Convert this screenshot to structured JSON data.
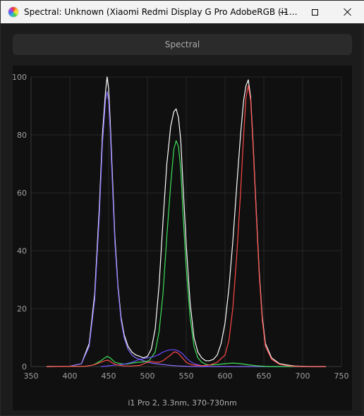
{
  "window": {
    "title": "Spectral: Unknown (Xiaomi Redmi Display G Pro AdobeRGB (i1…"
  },
  "toolbar": {
    "spectral_label": "Spectral"
  },
  "caption": "i1 Pro 2, 3.3nm, 370-730nm",
  "chart_data": {
    "type": "line",
    "title": "",
    "xlabel": "i1 Pro 2, 3.3nm, 370-730nm",
    "ylabel": "",
    "xlim": [
      350,
      750
    ],
    "ylim": [
      0,
      100
    ],
    "xticks": [
      350,
      400,
      450,
      500,
      550,
      600,
      650,
      700,
      750
    ],
    "yticks": [
      0,
      20,
      40,
      60,
      80,
      100
    ],
    "grid": true,
    "background": "#101010",
    "series": [
      {
        "color": "#ffffff",
        "x": [
          370,
          400,
          415,
          425,
          432,
          438,
          442,
          446,
          448,
          450,
          452,
          455,
          458,
          462,
          466,
          470,
          475,
          480,
          485,
          490,
          495,
          500,
          505,
          510,
          515,
          520,
          525,
          530,
          534,
          537,
          540,
          543,
          546,
          550,
          555,
          560,
          565,
          570,
          575,
          580,
          585,
          590,
          595,
          600,
          605,
          610,
          615,
          620,
          624,
          627,
          630,
          633,
          636,
          640,
          644,
          648,
          652,
          660,
          670,
          680,
          690,
          700,
          710,
          720,
          730
        ],
        "y": [
          0,
          0.1,
          1,
          8,
          25,
          55,
          80,
          95,
          100,
          96,
          85,
          65,
          45,
          28,
          17,
          11,
          7,
          5,
          4,
          3.5,
          3,
          3.5,
          6,
          13,
          28,
          50,
          70,
          83,
          88,
          89,
          86,
          78,
          62,
          42,
          22,
          10,
          5,
          3,
          2,
          2,
          2.5,
          4,
          8,
          15,
          27,
          43,
          62,
          80,
          92,
          97,
          99,
          93,
          78,
          55,
          33,
          17,
          8,
          3,
          1,
          0.5,
          0.2,
          0.1,
          0,
          0,
          0
        ]
      },
      {
        "color": "#8a6cff",
        "x": [
          370,
          400,
          415,
          425,
          432,
          438,
          442,
          446,
          448,
          450,
          452,
          455,
          458,
          462,
          466,
          470,
          475,
          480,
          485,
          490,
          495,
          500,
          505,
          510,
          520,
          530,
          540,
          550,
          560,
          600,
          650,
          730
        ],
        "y": [
          0,
          0.1,
          1,
          7,
          23,
          52,
          77,
          92,
          95,
          92,
          82,
          62,
          43,
          27,
          16,
          10,
          6,
          4,
          3,
          2.5,
          2,
          1.6,
          1.2,
          1,
          0.7,
          0.4,
          0.2,
          0.1,
          0,
          0,
          0,
          0
        ]
      },
      {
        "color": "#3ee05a",
        "x": [
          370,
          420,
          430,
          440,
          445,
          448,
          452,
          458,
          465,
          472,
          480,
          488,
          495,
          502,
          510,
          515,
          520,
          525,
          530,
          534,
          537,
          540,
          543,
          546,
          550,
          555,
          560,
          565,
          570,
          575,
          580,
          590,
          600,
          610,
          620,
          630,
          640,
          650,
          660,
          730
        ],
        "y": [
          0,
          0.1,
          0.5,
          2,
          3,
          3.5,
          3,
          1.5,
          1,
          0.8,
          1.2,
          1.5,
          1.6,
          2,
          5,
          12,
          25,
          45,
          63,
          75,
          78,
          76,
          68,
          52,
          34,
          17,
          7,
          3,
          1.5,
          0.8,
          0.5,
          0.7,
          1,
          1.2,
          1,
          0.6,
          0.3,
          0.1,
          0,
          0
        ]
      },
      {
        "color": "#6b4cff",
        "x": [
          440,
          470,
          480,
          490,
          500,
          505,
          510,
          515,
          520,
          525,
          530,
          535,
          540,
          545,
          550,
          555,
          560,
          570,
          580
        ],
        "y": [
          0,
          0.8,
          1.5,
          2.5,
          3,
          3.2,
          3.6,
          4.2,
          5,
          5.5,
          5.8,
          5.8,
          5.4,
          4.5,
          3,
          1.8,
          1,
          0.3,
          0
        ]
      },
      {
        "color": "#ff4a4a",
        "x": [
          370,
          420,
          430,
          440,
          445,
          448,
          451,
          455,
          460,
          470,
          480,
          490,
          500,
          505,
          510,
          515,
          520,
          525,
          530,
          534,
          537,
          540,
          545,
          550,
          555,
          560,
          570,
          580,
          590,
          600,
          605,
          610,
          615,
          620,
          624,
          627,
          630,
          633,
          636,
          640,
          644,
          648,
          652,
          660,
          670,
          680,
          690,
          700,
          710,
          730
        ],
        "y": [
          0,
          0.1,
          0.5,
          1.5,
          2,
          2.2,
          2,
          1.2,
          0.6,
          0.2,
          0.2,
          0.4,
          1.5,
          1.8,
          1.5,
          1.5,
          2,
          3,
          4,
          5,
          5,
          4.5,
          3,
          1.5,
          0.8,
          0.5,
          0.3,
          0.5,
          1.5,
          4,
          9,
          20,
          38,
          60,
          80,
          93,
          97,
          92,
          77,
          54,
          32,
          16,
          7,
          2.5,
          0.8,
          0.3,
          0.1,
          0,
          0,
          0
        ]
      }
    ]
  }
}
